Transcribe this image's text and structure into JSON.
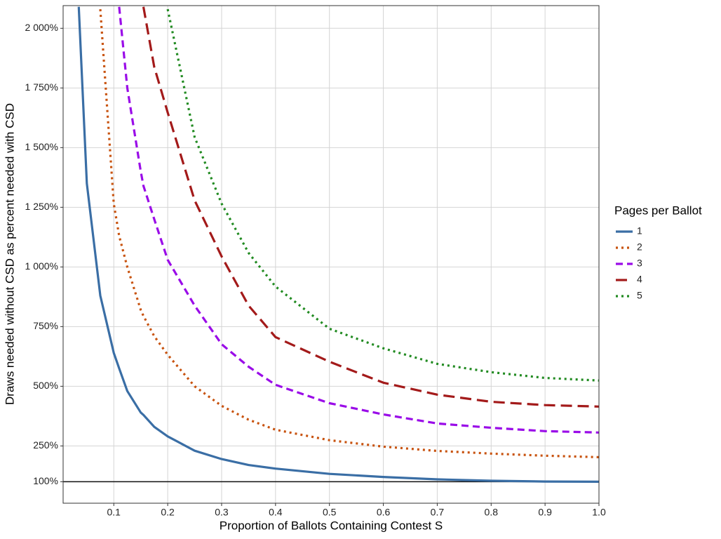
{
  "chart_data": {
    "type": "line",
    "x_label": "Proportion of Ballots Containing Contest S",
    "y_label": "Draws needed without CSD as percent needed with CSD",
    "legend_title": "Pages per Ballot",
    "legend_position": "right",
    "grid": true,
    "hline": 100,
    "xlim": [
      0.006,
      1.0
    ],
    "ylim": [
      10,
      2095
    ],
    "xticks": [
      0.1,
      0.2,
      0.3,
      0.4,
      0.5,
      0.6,
      0.7,
      0.8,
      0.9,
      {
        "value": 1.0,
        "label": "1.0"
      }
    ],
    "yticks": [
      {
        "value": 100,
        "label": "100%"
      },
      {
        "value": 250,
        "label": "250%"
      },
      {
        "value": 500,
        "label": "500%"
      },
      {
        "value": 750,
        "label": "750%"
      },
      {
        "value": 1000,
        "label": "1 000%"
      },
      {
        "value": 1250,
        "label": "1 250%"
      },
      {
        "value": 1500,
        "label": "1 500%"
      },
      {
        "value": 1750,
        "label": "1 750%"
      },
      {
        "value": 2000,
        "label": "2 000%"
      }
    ],
    "x": [
      0.035,
      0.05,
      0.075,
      0.1,
      0.11,
      0.125,
      0.15,
      0.155,
      0.175,
      0.2,
      0.25,
      0.3,
      0.35,
      0.4,
      0.5,
      0.6,
      0.7,
      0.8,
      0.9,
      1.0
    ],
    "series": [
      {
        "name": "1",
        "color": "#3a6ea5",
        "dash": "solid",
        "values": [
          2090,
          1350,
          880,
          640,
          575,
          480,
          390,
          380,
          330,
          290,
          230,
          195,
          170,
          155,
          133,
          120,
          110,
          104,
          101,
          100
        ]
      },
      {
        "name": "2",
        "color": "#c8530f",
        "dash": "dotted",
        "values": [
          null,
          null,
          2080,
          1265,
          1130,
          1000,
          820,
          795,
          710,
          632,
          500,
          418,
          360,
          318,
          274,
          247,
          229,
          218,
          209,
          203
        ]
      },
      {
        "name": "3",
        "color": "#9a0ce8",
        "dash": "dashed",
        "values": [
          null,
          null,
          null,
          null,
          2090,
          1750,
          1400,
          1340,
          1200,
          1030,
          838,
          676,
          582,
          506,
          429,
          382,
          344,
          326,
          312,
          306
        ]
      },
      {
        "name": "4",
        "color": "#a31a1a",
        "dash": "longdash",
        "values": [
          null,
          null,
          null,
          null,
          null,
          null,
          null,
          2090,
          1838,
          1647,
          1279,
          1044,
          838,
          706,
          603,
          515,
          465,
          435,
          421,
          415
        ]
      },
      {
        "name": "5",
        "color": "#228b22",
        "dash": "dotted",
        "values": [
          null,
          null,
          null,
          null,
          null,
          null,
          null,
          null,
          null,
          2080,
          1544,
          1265,
          1059,
          918,
          741,
          659,
          594,
          559,
          535,
          524
        ]
      }
    ]
  }
}
